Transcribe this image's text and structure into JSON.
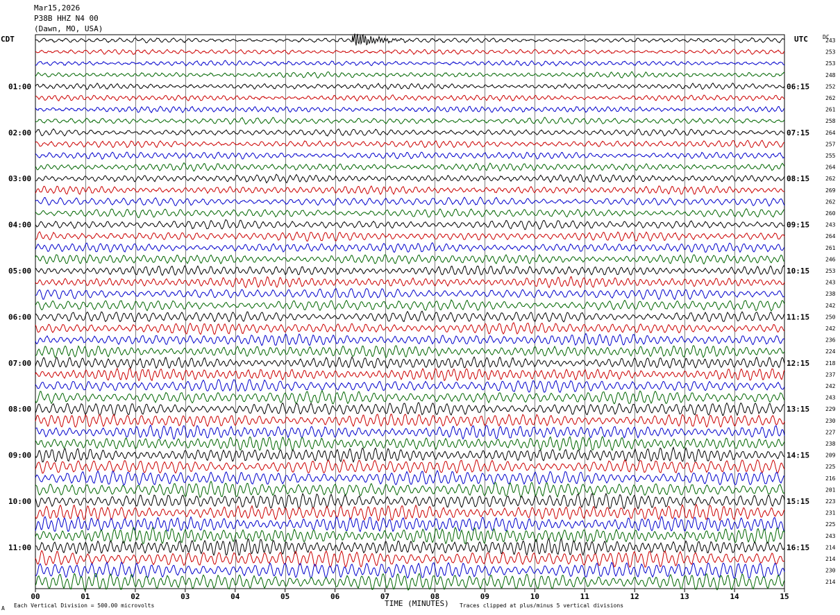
{
  "header": {
    "date": "Mar15,2026",
    "station": "P38B HHZ N4 00",
    "location": "(Dawn, MO, USA)"
  },
  "left_axis_label": "CDT",
  "right_axis_label": "UTC",
  "dc_label": "DC",
  "footer": {
    "scale_text": "Each Vertical Division =  500.00 microvolts",
    "clip_text": "Traces clipped at plus/minus 5 vertical divisions",
    "corner_mark": "A"
  },
  "colors": {
    "trace_cycle": [
      "#000000",
      "#cc0000",
      "#0000cc",
      "#006600"
    ],
    "grid": "#808080"
  },
  "chart_data": {
    "type": "line",
    "xlabel": "TIME (MINUTES)",
    "xlim": [
      0,
      15
    ],
    "x_ticks": [
      "00",
      "01",
      "02",
      "03",
      "04",
      "05",
      "06",
      "07",
      "08",
      "09",
      "10",
      "11",
      "12",
      "13",
      "14",
      "15"
    ],
    "left_time_labels": [
      "01:00",
      "02:00",
      "03:00",
      "04:00",
      "05:00",
      "06:00",
      "07:00",
      "08:00",
      "09:00",
      "10:00",
      "11:00"
    ],
    "right_time_labels": [
      "06:15",
      "07:15",
      "08:15",
      "09:15",
      "10:15",
      "11:15",
      "12:15",
      "13:15",
      "14:15",
      "15:15",
      "16:15"
    ],
    "dc_offsets": [
      243,
      253,
      253,
      248,
      252,
      262,
      261,
      258,
      264,
      257,
      255,
      264,
      262,
      269,
      262,
      260,
      243,
      264,
      261,
      246,
      253,
      243,
      238,
      242,
      250,
      242,
      236,
      224,
      218,
      237,
      242,
      243,
      229,
      230,
      227,
      238,
      209,
      225,
      216,
      201,
      223,
      231,
      225,
      243,
      214,
      214,
      230,
      214
    ],
    "event": {
      "row": 0,
      "minute": 6.35
    }
  }
}
